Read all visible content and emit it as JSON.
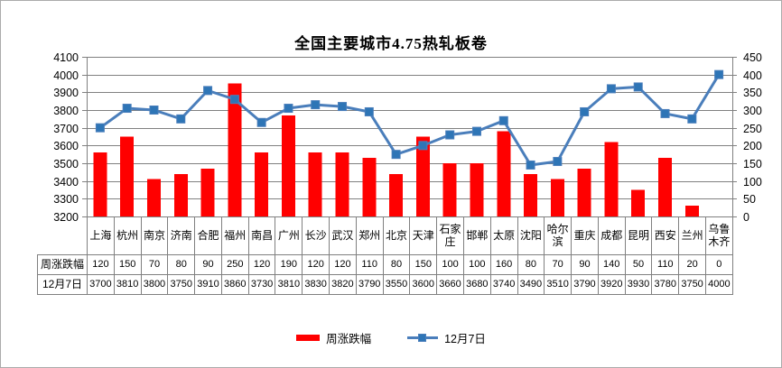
{
  "chart_data": {
    "type": "bar+line",
    "title": "全国主要城市4.75热轧板卷",
    "categories": [
      "上海",
      "杭州",
      "南京",
      "济南",
      "合肥",
      "福州",
      "南昌",
      "广州",
      "长沙",
      "武汉",
      "郑州",
      "北京",
      "天津",
      "石家庄",
      "邯郸",
      "太原",
      "沈阳",
      "哈尔滨",
      "重庆",
      "成都",
      "昆明",
      "西安",
      "兰州",
      "乌鲁木齐"
    ],
    "series": [
      {
        "name": "周涨跌幅",
        "type": "bar",
        "axis": "right",
        "color": "#ff0000",
        "values": [
          120,
          150,
          70,
          80,
          90,
          250,
          120,
          190,
          120,
          120,
          110,
          80,
          150,
          100,
          100,
          160,
          80,
          70,
          90,
          140,
          50,
          110,
          20,
          0
        ]
      },
      {
        "name": "12月7日",
        "type": "line",
        "axis": "left",
        "color": "#4a7ebb",
        "marker": "square",
        "marker_color": "#2e75b6",
        "values": [
          3700,
          3810,
          3800,
          3750,
          3910,
          3860,
          3730,
          3810,
          3830,
          3820,
          3790,
          3550,
          3600,
          3660,
          3680,
          3740,
          3490,
          3510,
          3790,
          3920,
          3930,
          3780,
          3750,
          4000
        ]
      }
    ],
    "left_axis": {
      "min": 3200,
      "max": 4100,
      "step": 100
    },
    "right_axis": {
      "min": 0,
      "max": 300,
      "step": 50
    },
    "grid": true,
    "legend_position": "bottom",
    "colors": {
      "grid": "#808080",
      "axis": "#808080",
      "table_border": "#808080",
      "frame": "#ababab"
    }
  }
}
